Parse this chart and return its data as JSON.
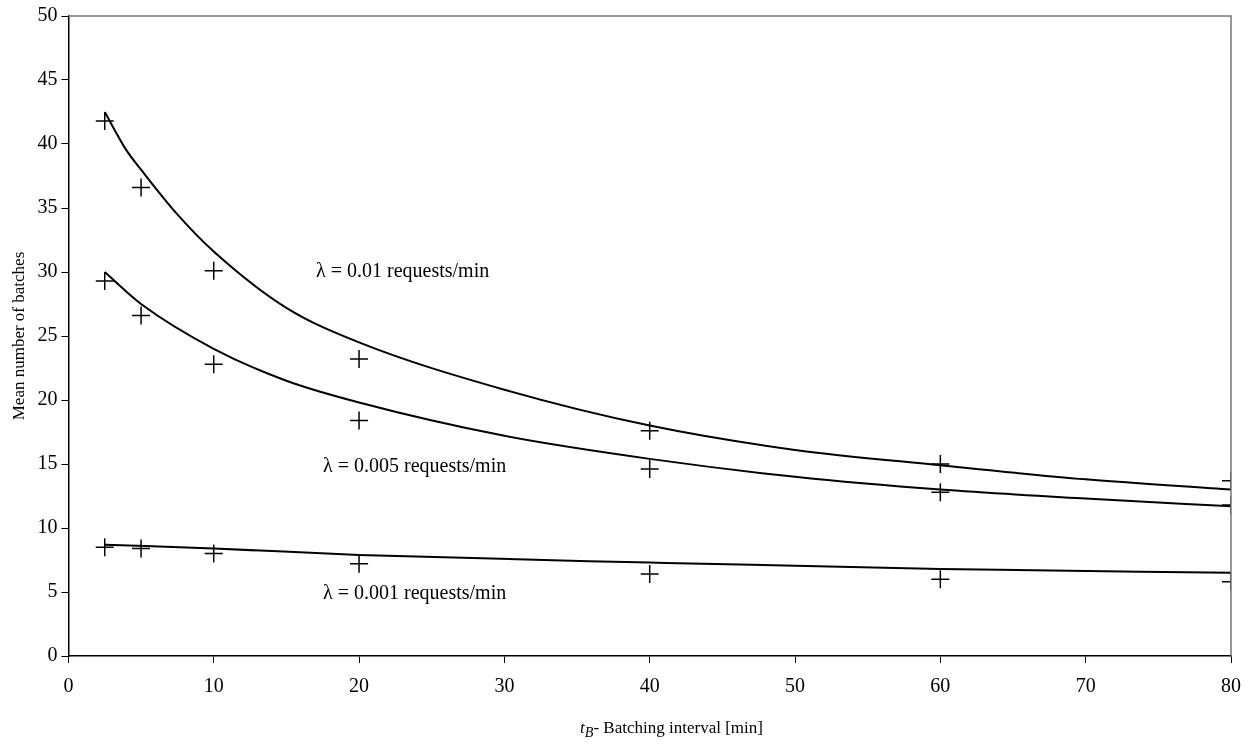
{
  "chart_data": {
    "type": "scatter",
    "xlabel": "t$_{B}$- Batching interval [min]",
    "ylabel": "Mean number of batches",
    "xlim": [
      0,
      80
    ],
    "xticks": [
      0,
      10,
      20,
      30,
      40,
      50,
      60,
      70,
      80
    ],
    "ylim": [
      0,
      50
    ],
    "yticks": [
      0,
      5,
      10,
      15,
      20,
      25,
      30,
      35,
      40,
      45,
      50
    ],
    "grid": false,
    "legend": false,
    "marker": "cross",
    "series": [
      {
        "color": "#000000",
        "x": [
          2.5,
          5,
          10,
          20,
          40,
          60,
          80
        ],
        "values": [
          41.8,
          36.6,
          30.1,
          23.2,
          17.6,
          15.0,
          13.7
        ]
      },
      {
        "color": "#000000",
        "x": [
          2.5,
          5,
          10,
          20,
          40,
          60,
          80
        ],
        "values": [
          29.3,
          26.6,
          22.8,
          18.4,
          14.6,
          12.8,
          11.8
        ]
      },
      {
        "color": "#000000",
        "x": [
          2.5,
          5,
          10,
          20,
          40,
          60,
          80
        ],
        "values": [
          8.5,
          8.4,
          8.0,
          7.2,
          6.4,
          6.0,
          5.8
        ]
      },
      {
        "type": "line",
        "color": "#000000",
        "marker": "none",
        "line_style": "solid",
        "x": [
          2.5,
          4,
          5,
          7.5,
          10,
          15,
          20,
          30,
          40,
          50,
          60,
          70,
          80
        ],
        "values": [
          42.5,
          39.5,
          38.0,
          34.5,
          31.6,
          27.2,
          24.5,
          20.8,
          18.0,
          16.1,
          14.9,
          13.8,
          13.0
        ]
      },
      {
        "type": "line",
        "color": "#000000",
        "marker": "none",
        "line_style": "solid",
        "x": [
          2.5,
          5,
          10,
          15,
          20,
          30,
          40,
          50,
          60,
          70,
          80
        ],
        "values": [
          30.0,
          27.5,
          24.0,
          21.5,
          19.8,
          17.2,
          15.4,
          14.0,
          13.0,
          12.3,
          11.7
        ]
      },
      {
        "type": "line",
        "color": "#000000",
        "marker": "none",
        "line_style": "solid",
        "x": [
          2.5,
          10,
          20,
          40,
          60,
          80
        ],
        "values": [
          8.7,
          8.4,
          7.9,
          7.3,
          6.8,
          6.5
        ]
      }
    ],
    "annotations": [
      "λ = 0.01 requests/min",
      "λ = 0.005 requests/min",
      "λ = 0.001 requests/min"
    ]
  }
}
